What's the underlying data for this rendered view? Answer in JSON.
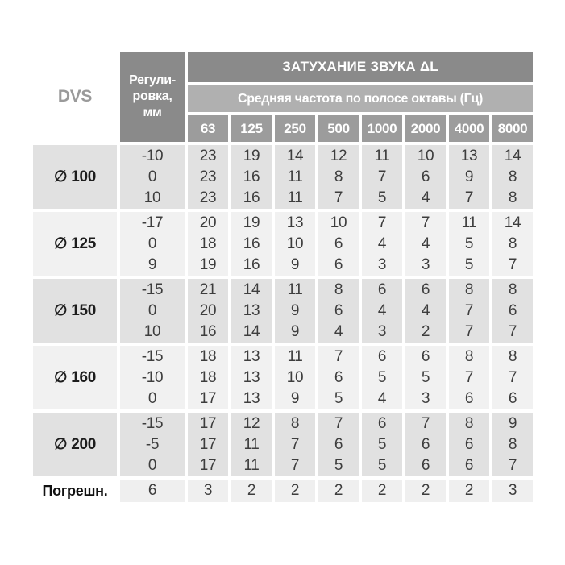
{
  "colors": {
    "header_dark": "#8a8a8a",
    "header_mid": "#b0b0b0",
    "header_freq": "#9c9c9c",
    "group_dark": "#e1e1e1",
    "group_light": "#f1f1f1",
    "error_cell": "#efefef",
    "text_dark": "#3d3d3d",
    "dvs_text": "#9a9a9a"
  },
  "table": {
    "dvs_label": "DVS",
    "regulation_header_lines": [
      "Регули-",
      "ровка,",
      "мм"
    ],
    "attenuation_title": "ЗАТУХАНИЕ ЗВУКА ΔL",
    "frequency_subtitle": "Средняя частота по полосе октавы (Гц)",
    "frequencies": [
      "63",
      "125",
      "250",
      "500",
      "1000",
      "2000",
      "4000",
      "8000"
    ],
    "groups": [
      {
        "diameter": "∅ 100",
        "shade": "dark",
        "regulations": [
          "-10",
          "0",
          "10"
        ],
        "values": [
          [
            "23",
            "19",
            "14",
            "12",
            "11",
            "10",
            "13",
            "14"
          ],
          [
            "23",
            "16",
            "11",
            "8",
            "7",
            "6",
            "9",
            "8"
          ],
          [
            "23",
            "16",
            "11",
            "7",
            "5",
            "4",
            "7",
            "8"
          ]
        ]
      },
      {
        "diameter": "∅ 125",
        "shade": "light",
        "regulations": [
          "-17",
          "0",
          "9"
        ],
        "values": [
          [
            "20",
            "19",
            "13",
            "10",
            "7",
            "7",
            "11",
            "14"
          ],
          [
            "18",
            "16",
            "10",
            "6",
            "4",
            "4",
            "5",
            "8"
          ],
          [
            "19",
            "16",
            "9",
            "6",
            "3",
            "3",
            "5",
            "7"
          ]
        ]
      },
      {
        "diameter": "∅ 150",
        "shade": "dark",
        "regulations": [
          "-15",
          "0",
          "10"
        ],
        "values": [
          [
            "21",
            "14",
            "11",
            "8",
            "6",
            "6",
            "8",
            "8"
          ],
          [
            "20",
            "13",
            "9",
            "6",
            "4",
            "4",
            "7",
            "6"
          ],
          [
            "16",
            "14",
            "9",
            "4",
            "3",
            "2",
            "7",
            "7"
          ]
        ]
      },
      {
        "diameter": "∅ 160",
        "shade": "light",
        "regulations": [
          "-15",
          "-10",
          "0"
        ],
        "values": [
          [
            "18",
            "13",
            "11",
            "7",
            "6",
            "6",
            "8",
            "8"
          ],
          [
            "18",
            "13",
            "10",
            "6",
            "5",
            "5",
            "7",
            "7"
          ],
          [
            "17",
            "13",
            "9",
            "5",
            "4",
            "3",
            "6",
            "6"
          ]
        ]
      },
      {
        "diameter": "∅ 200",
        "shade": "dark",
        "regulations": [
          "-15",
          "-5",
          "0"
        ],
        "values": [
          [
            "17",
            "12",
            "8",
            "7",
            "6",
            "7",
            "8",
            "9"
          ],
          [
            "17",
            "11",
            "7",
            "6",
            "5",
            "6",
            "6",
            "8"
          ],
          [
            "17",
            "11",
            "7",
            "5",
            "5",
            "6",
            "6",
            "7"
          ]
        ]
      }
    ],
    "error_row": {
      "label": "Погрешн.",
      "regulation": "6",
      "values": [
        "3",
        "2",
        "2",
        "2",
        "2",
        "2",
        "2",
        "3"
      ]
    }
  }
}
